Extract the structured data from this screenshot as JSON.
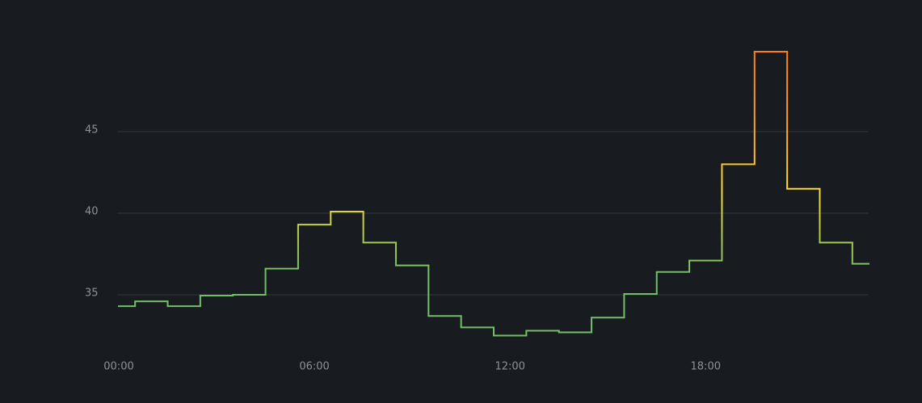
{
  "chart_data": {
    "type": "step",
    "categories": [
      "00:00",
      null,
      null,
      null,
      null,
      null,
      "06:00",
      null,
      null,
      null,
      null,
      null,
      "12:00",
      null,
      null,
      null,
      null,
      null,
      "18:00",
      null,
      null,
      null,
      null,
      null
    ],
    "values": [
      34.3,
      34.6,
      34.3,
      34.95,
      35.0,
      36.6,
      39.3,
      40.1,
      38.2,
      36.8,
      33.7,
      33.0,
      32.5,
      32.8,
      32.7,
      33.6,
      35.05,
      36.4,
      37.1,
      43.0,
      49.9,
      41.5,
      38.2,
      36.9
    ],
    "ylim": [
      31.5,
      51
    ],
    "yticks": [
      35,
      40,
      45
    ],
    "grid": true,
    "colors": [
      "#73bf69",
      "#73bf69",
      "#fade2a",
      "#ff9830",
      "#ff780a"
    ]
  }
}
